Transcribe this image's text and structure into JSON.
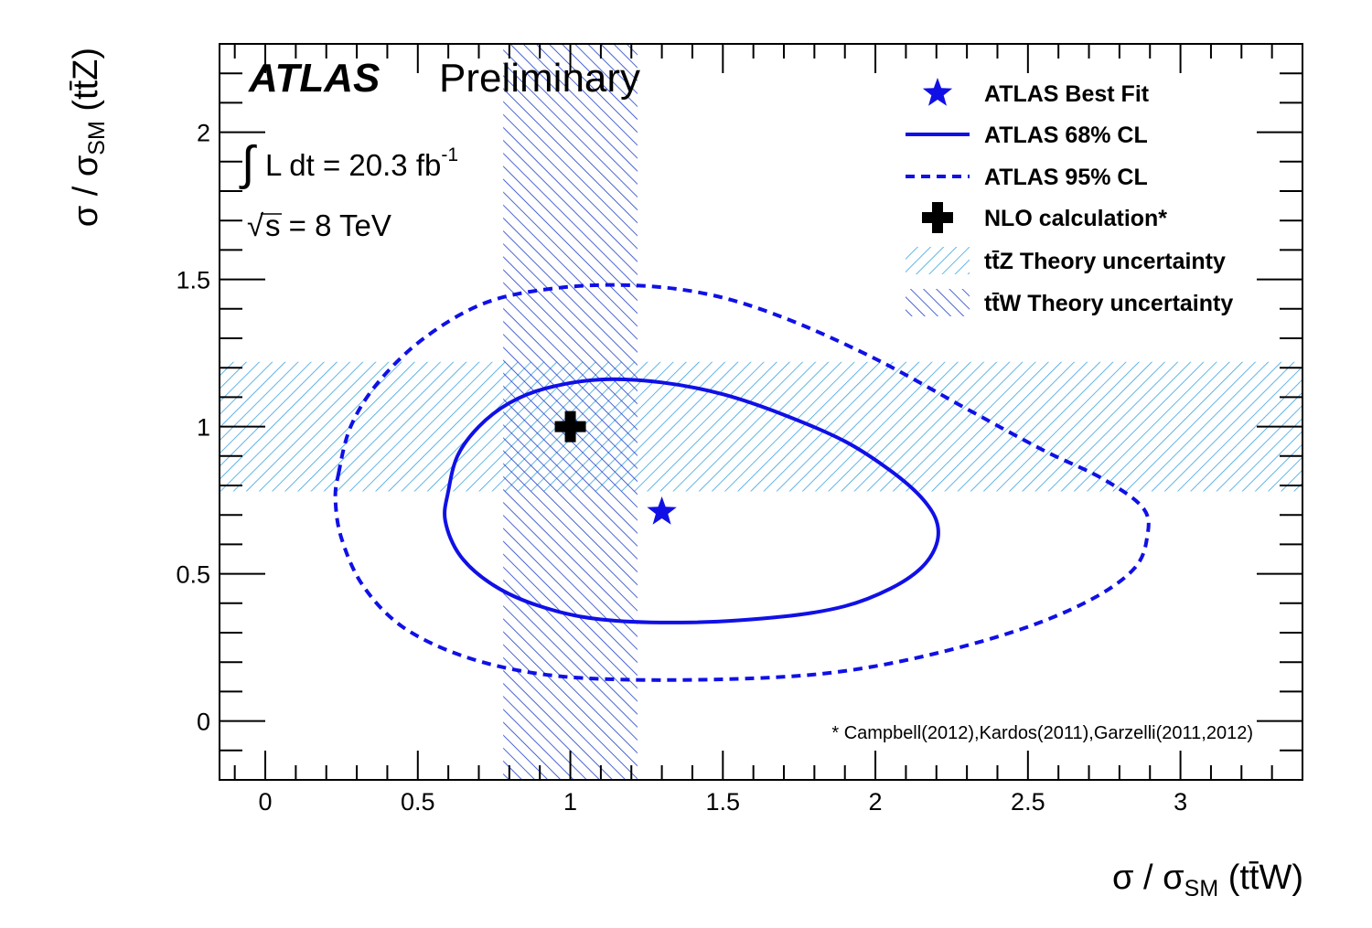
{
  "chart_data": {
    "type": "scatter",
    "header": {
      "experiment": "ATLAS",
      "status": "Preliminary"
    },
    "annotations": {
      "lumi_prefix": "L dt = 20.3 fb",
      "lumi_exponent": "-1",
      "energy_root": "s",
      "energy_rest": " = 8 TeV",
      "footnote": "* Campbell(2012),Kardos(2011),Garzelli(2011,2012)"
    },
    "xaxis": {
      "label_main": "σ / σ",
      "label_sub": "SM",
      "label_process": " (tt̄W)",
      "range": [
        -0.15,
        3.4
      ],
      "ticks": [
        "0",
        "0.5",
        "1",
        "1.5",
        "2",
        "2.5",
        "3"
      ]
    },
    "yaxis": {
      "label_main": "σ / σ",
      "label_sub": "SM",
      "label_process": " (tt̄Z)",
      "range": [
        -0.2,
        2.3
      ],
      "ticks": [
        "0",
        "0.5",
        "1",
        "1.5",
        "2"
      ]
    },
    "grid": false,
    "legend_position": "top-right",
    "legend": [
      {
        "label": "ATLAS Best Fit",
        "marker": "star"
      },
      {
        "label": "ATLAS 68% CL",
        "marker": "solid-line"
      },
      {
        "label": "ATLAS 95% CL",
        "marker": "dashed-line"
      },
      {
        "label": "NLO calculation*",
        "marker": "cross"
      },
      {
        "label": "tt̄Z Theory uncertainty",
        "marker": "light-hatch"
      },
      {
        "label": "tt̄W Theory uncertainty",
        "marker": "dark-hatch"
      }
    ],
    "best_fit": {
      "x": 1.3,
      "y": 0.71
    },
    "nlo_point": {
      "x": 1.0,
      "y": 1.0
    },
    "ttZ_band": {
      "y_low": 0.78,
      "y_high": 1.22
    },
    "ttW_band": {
      "x_low": 0.78,
      "x_high": 1.22
    },
    "contour_68": [
      [
        0.6,
        0.78
      ],
      [
        0.63,
        0.9
      ],
      [
        0.7,
        1.0
      ],
      [
        0.8,
        1.08
      ],
      [
        0.92,
        1.13
      ],
      [
        1.1,
        1.16
      ],
      [
        1.3,
        1.15
      ],
      [
        1.5,
        1.11
      ],
      [
        1.7,
        1.04
      ],
      [
        1.9,
        0.95
      ],
      [
        2.05,
        0.85
      ],
      [
        2.15,
        0.76
      ],
      [
        2.2,
        0.68
      ],
      [
        2.2,
        0.6
      ],
      [
        2.15,
        0.52
      ],
      [
        2.05,
        0.45
      ],
      [
        1.9,
        0.39
      ],
      [
        1.7,
        0.355
      ],
      [
        1.4,
        0.335
      ],
      [
        1.1,
        0.345
      ],
      [
        0.9,
        0.39
      ],
      [
        0.75,
        0.46
      ],
      [
        0.64,
        0.56
      ],
      [
        0.59,
        0.68
      ],
      [
        0.6,
        0.78
      ]
    ],
    "contour_95": [
      [
        0.24,
        0.84
      ],
      [
        0.28,
        1.0
      ],
      [
        0.37,
        1.15
      ],
      [
        0.52,
        1.3
      ],
      [
        0.72,
        1.42
      ],
      [
        0.95,
        1.47
      ],
      [
        1.2,
        1.48
      ],
      [
        1.45,
        1.45
      ],
      [
        1.7,
        1.37
      ],
      [
        2.0,
        1.23
      ],
      [
        2.3,
        1.06
      ],
      [
        2.55,
        0.92
      ],
      [
        2.75,
        0.82
      ],
      [
        2.88,
        0.72
      ],
      [
        2.89,
        0.62
      ],
      [
        2.85,
        0.52
      ],
      [
        2.72,
        0.42
      ],
      [
        2.5,
        0.32
      ],
      [
        2.2,
        0.23
      ],
      [
        1.9,
        0.17
      ],
      [
        1.6,
        0.145
      ],
      [
        1.2,
        0.14
      ],
      [
        0.9,
        0.16
      ],
      [
        0.65,
        0.22
      ],
      [
        0.45,
        0.32
      ],
      [
        0.32,
        0.46
      ],
      [
        0.25,
        0.62
      ],
      [
        0.23,
        0.75
      ],
      [
        0.24,
        0.84
      ]
    ],
    "colors": {
      "blue": "#1010e6",
      "hatch_light": "#3aa3e2",
      "hatch_dark": "#1f3fc8",
      "nlo": "#000000"
    }
  }
}
